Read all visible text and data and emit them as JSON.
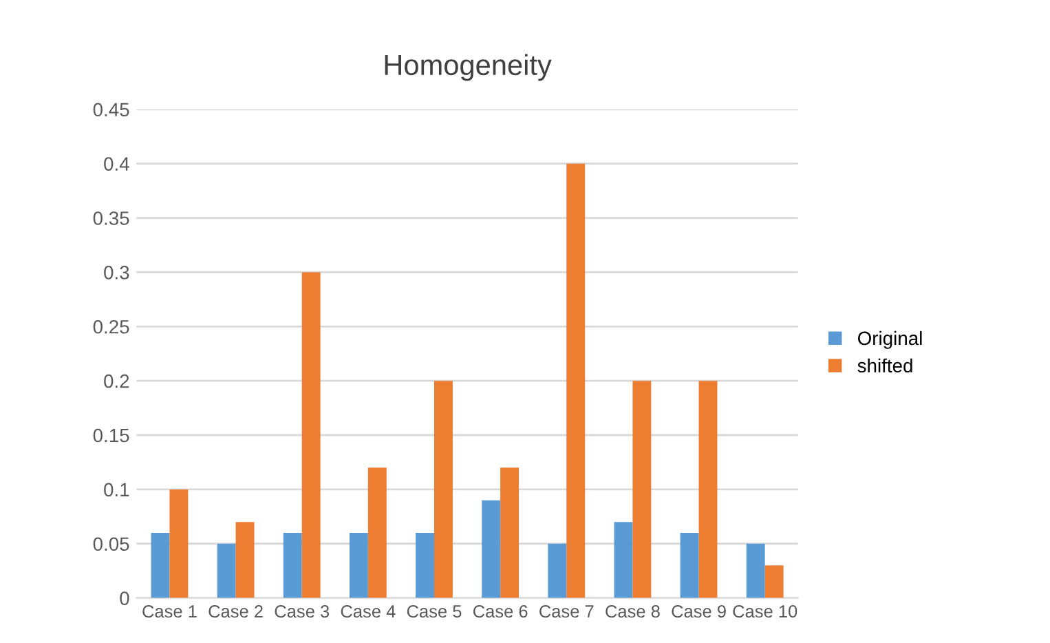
{
  "chart_data": {
    "type": "bar",
    "title": "Homogeneity",
    "categories": [
      "Case 1",
      "Case 2",
      "Case 3",
      "Case 4",
      "Case 5",
      "Case 6",
      "Case 7",
      "Case 8",
      "Case 9",
      "Case 10"
    ],
    "series": [
      {
        "name": "Original",
        "color": "#5b9bd5",
        "values": [
          0.06,
          0.05,
          0.06,
          0.06,
          0.06,
          0.09,
          0.05,
          0.07,
          0.06,
          0.05
        ]
      },
      {
        "name": "shifted",
        "color": "#ed7d31",
        "values": [
          0.1,
          0.07,
          0.3,
          0.12,
          0.2,
          0.12,
          0.4,
          0.2,
          0.2,
          0.03
        ]
      }
    ],
    "ylim": [
      0,
      0.45
    ],
    "yticks": [
      0,
      0.05,
      0.1,
      0.15,
      0.2,
      0.25,
      0.3,
      0.35,
      0.4,
      0.45
    ],
    "grid": "y",
    "legend": "right"
  }
}
